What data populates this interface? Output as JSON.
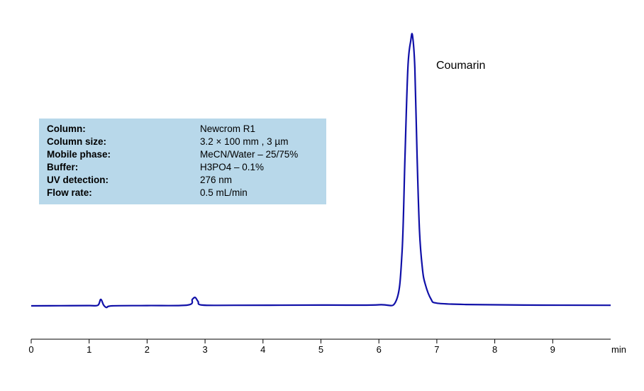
{
  "chart_data": {
    "type": "line",
    "xlabel": "min",
    "xlim": [
      0,
      10
    ],
    "ticks": [
      "0",
      "1",
      "2",
      "3",
      "4",
      "5",
      "6",
      "7",
      "8",
      "9"
    ],
    "grid": false,
    "series": [
      {
        "name": "",
        "color": "#1010a8",
        "x": [
          0,
          0.5,
          1.0,
          1.15,
          1.2,
          1.25,
          1.3,
          1.4,
          2.0,
          2.7,
          2.78,
          2.83,
          2.88,
          2.95,
          3.5,
          5.0,
          6.0,
          6.3,
          6.4,
          6.45,
          6.5,
          6.55,
          6.58,
          6.62,
          6.66,
          6.7,
          6.75,
          6.8,
          6.9,
          7.0,
          7.5,
          8.5,
          10.0
        ],
        "y": [
          0,
          0.05,
          0.1,
          0.2,
          2.4,
          0.3,
          -0.6,
          0,
          0.1,
          0.3,
          2.4,
          3.1,
          1.6,
          0.3,
          0.2,
          0.3,
          0.4,
          2.0,
          20,
          55,
          88,
          98,
          100,
          88,
          55,
          28,
          14,
          8,
          2.5,
          1.0,
          0.5,
          0.3,
          0.2
        ]
      }
    ],
    "annotations": [
      {
        "text": "Coumarin",
        "x": 6.58
      }
    ]
  },
  "info": {
    "rows": [
      {
        "label": "Column:",
        "value": "Newcrom R1"
      },
      {
        "label": "Column size:",
        "value": "3.2 × 100 mm , 3 µm"
      },
      {
        "label": "Mobile phase:",
        "value": "MeCN/Water – 25/75%"
      },
      {
        "label": "Buffer:",
        "value": "H3PO4 – 0.1%"
      },
      {
        "label": "UV detection:",
        "value": "276 nm"
      },
      {
        "label": "Flow rate:",
        "value": "0.5 mL/min"
      }
    ]
  }
}
